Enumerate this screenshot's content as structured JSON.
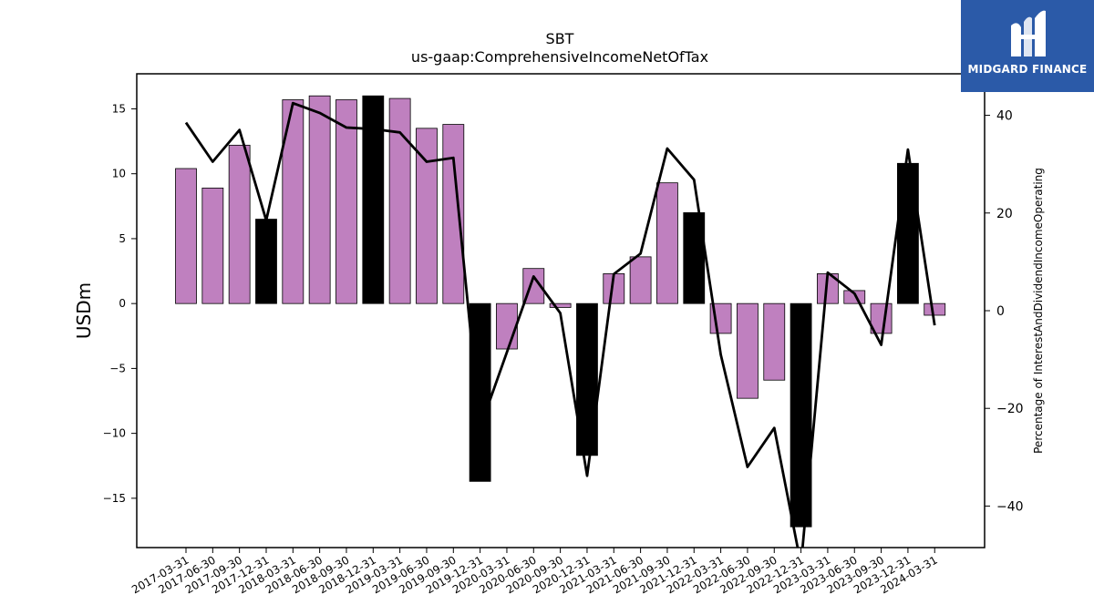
{
  "chart_data": {
    "type": "bar",
    "title": "SBT",
    "subtitle": "us-gaap:ComprehensiveIncomeNetOfTax",
    "ylabel": "USDm",
    "y2label": "Percentage of InterestAndDividendIncomeOperating",
    "ylim": [
      -18.8,
      17.7
    ],
    "y2lim": [
      -48.5,
      48.5
    ],
    "yticks": [
      -15,
      -10,
      -5,
      0,
      5,
      10,
      15
    ],
    "y2ticks": [
      -40,
      -20,
      0,
      20,
      40
    ],
    "categories": [
      "2017-03-31",
      "2017-06-30",
      "2017-09-30",
      "2017-12-31",
      "2018-03-31",
      "2018-06-30",
      "2018-09-30",
      "2018-12-31",
      "2019-03-31",
      "2019-06-30",
      "2019-09-30",
      "2019-12-31",
      "2020-03-31",
      "2020-06-30",
      "2020-09-30",
      "2020-12-31",
      "2021-03-31",
      "2021-06-30",
      "2021-09-30",
      "2021-12-31",
      "2022-03-31",
      "2022-06-30",
      "2022-09-30",
      "2022-12-31",
      "2023-03-31",
      "2023-06-30",
      "2023-09-30",
      "2023-12-31",
      "2024-03-31"
    ],
    "series": [
      {
        "type": "bar",
        "values": [
          10.4,
          8.9,
          12.2,
          6.5,
          15.7,
          16.0,
          15.7,
          16.0,
          15.8,
          13.5,
          13.8,
          -13.7,
          -3.5,
          2.7,
          -0.3,
          -11.7,
          2.3,
          3.6,
          9.3,
          7.0,
          -2.3,
          -7.3,
          -5.9,
          -17.2,
          2.3,
          1.0,
          -2.3,
          10.8,
          -0.9
        ],
        "highlight": [
          false,
          false,
          false,
          true,
          false,
          false,
          false,
          true,
          false,
          false,
          false,
          true,
          false,
          false,
          false,
          true,
          false,
          false,
          false,
          true,
          false,
          false,
          false,
          true,
          false,
          false,
          false,
          true,
          false
        ]
      },
      {
        "type": "line",
        "axis": "right",
        "values": [
          38.5,
          30.5,
          37.0,
          18.5,
          42.5,
          40.5,
          37.5,
          37.2,
          36.5,
          30.5,
          31.3,
          -24.0,
          -8.5,
          7.0,
          -0.5,
          -33.8,
          7.5,
          11.7,
          33.2,
          26.8,
          -9.0,
          -32.0,
          -24.0,
          -52.0,
          7.8,
          3.5,
          -7.0,
          33.0,
          -3.0
        ]
      }
    ],
    "colors": {
      "bar": "#bf80bf",
      "bar_highlight": "#000000",
      "line": "#000000"
    }
  },
  "logo": {
    "text": "MIDGARD FINANCE",
    "background": "#2b5aa8"
  }
}
